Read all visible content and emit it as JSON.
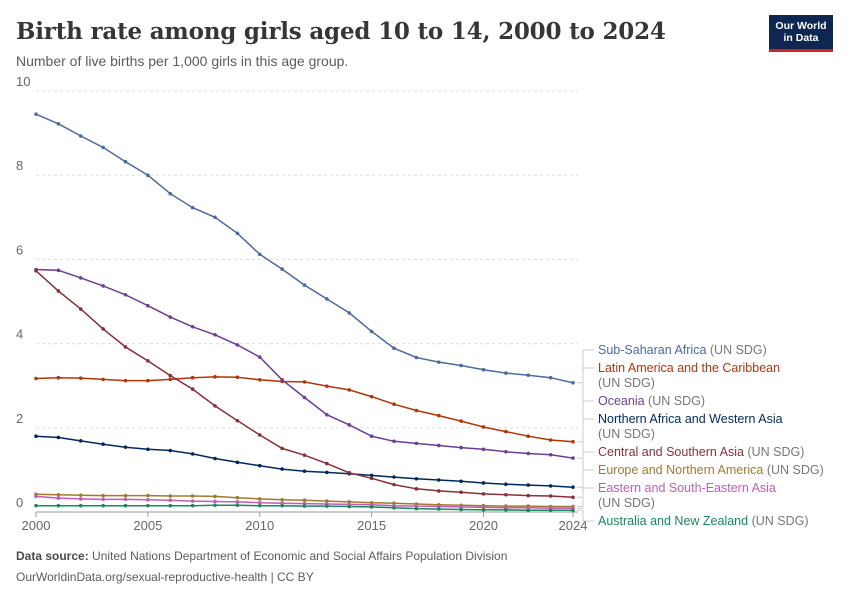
{
  "header": {
    "title": "Birth rate among girls aged 10 to 14, 2000 to 2024",
    "subtitle": "Number of live births per 1,000 girls in this age group.",
    "logo_line1": "Our World",
    "logo_line2": "in Data",
    "brand_color": "#0f2650",
    "brand_accent": "#ce261e"
  },
  "footer": {
    "source_label": "Data source:",
    "source_text": "United Nations Department of Economic and Social Affairs Population Division",
    "url": "OurWorldinData.org/sexual-reproductive-health | CC BY"
  },
  "chart_data": {
    "type": "line",
    "title": "Birth rate among girls aged 10 to 14, 2000 to 2024",
    "subtitle": "Number of live births per 1,000 girls in this age group.",
    "xlabel": "",
    "ylabel": "",
    "xlim": [
      2000,
      2024
    ],
    "ylim": [
      0,
      10
    ],
    "x_ticks": [
      2000,
      2005,
      2010,
      2015,
      2020,
      2024
    ],
    "y_ticks": [
      0,
      2,
      4,
      6,
      8,
      10
    ],
    "grid": "horizontal-dashed",
    "legend": "right",
    "x": [
      2000,
      2001,
      2002,
      2003,
      2004,
      2005,
      2006,
      2007,
      2008,
      2009,
      2010,
      2011,
      2012,
      2013,
      2014,
      2015,
      2016,
      2017,
      2018,
      2019,
      2020,
      2021,
      2022,
      2023,
      2024
    ],
    "series": [
      {
        "name": "Sub-Saharan Africa",
        "suffix": " (UN SDG)",
        "color": "#4c6a9c",
        "values": [
          9.45,
          9.22,
          8.93,
          8.66,
          8.32,
          8.0,
          7.56,
          7.23,
          7.0,
          6.62,
          6.12,
          5.77,
          5.39,
          5.06,
          4.73,
          4.29,
          3.89,
          3.67,
          3.56,
          3.48,
          3.38,
          3.3,
          3.25,
          3.19,
          3.07
        ]
      },
      {
        "name": "Latin America and the Caribbean",
        "suffix": "",
        "legend_line2": "(UN SDG)",
        "color": "#b13507",
        "values": [
          3.17,
          3.19,
          3.18,
          3.15,
          3.12,
          3.12,
          3.15,
          3.19,
          3.21,
          3.2,
          3.14,
          3.1,
          3.09,
          2.99,
          2.9,
          2.74,
          2.56,
          2.41,
          2.29,
          2.16,
          2.02,
          1.91,
          1.8,
          1.71,
          1.67
        ]
      },
      {
        "name": "Oceania",
        "suffix": " (UN SDG)",
        "color": "#6d3e91",
        "values": [
          5.76,
          5.74,
          5.56,
          5.37,
          5.16,
          4.9,
          4.63,
          4.4,
          4.21,
          3.97,
          3.68,
          3.14,
          2.72,
          2.31,
          2.07,
          1.8,
          1.68,
          1.63,
          1.58,
          1.53,
          1.49,
          1.43,
          1.39,
          1.36,
          1.28
        ]
      },
      {
        "name": "Northern Africa and Western Asia",
        "suffix": "",
        "legend_line2": "(UN SDG)",
        "color": "#00295b",
        "values": [
          1.8,
          1.77,
          1.69,
          1.61,
          1.54,
          1.49,
          1.46,
          1.38,
          1.27,
          1.18,
          1.1,
          1.02,
          0.97,
          0.94,
          0.91,
          0.87,
          0.83,
          0.79,
          0.76,
          0.73,
          0.69,
          0.66,
          0.64,
          0.62,
          0.59
        ]
      },
      {
        "name": "Central and Southern Asia",
        "suffix": " (UN SDG)",
        "color": "#883039",
        "values": [
          5.73,
          5.25,
          4.82,
          4.35,
          3.92,
          3.59,
          3.24,
          2.92,
          2.52,
          2.17,
          1.83,
          1.51,
          1.35,
          1.15,
          0.93,
          0.8,
          0.65,
          0.55,
          0.5,
          0.47,
          0.43,
          0.41,
          0.39,
          0.38,
          0.35
        ]
      },
      {
        "name": "Europe and Northern America",
        "suffix": " (UN SDG)",
        "color": "#a2792f",
        "values": [
          0.42,
          0.41,
          0.4,
          0.39,
          0.39,
          0.39,
          0.38,
          0.38,
          0.37,
          0.34,
          0.31,
          0.29,
          0.28,
          0.26,
          0.24,
          0.22,
          0.21,
          0.19,
          0.17,
          0.16,
          0.15,
          0.14,
          0.14,
          0.13,
          0.13
        ]
      },
      {
        "name": "Eastern and South-Eastern Asia",
        "suffix": "",
        "legend_line2": "(UN SDG)",
        "color": "#c05db9",
        "values": [
          0.37,
          0.33,
          0.31,
          0.3,
          0.3,
          0.29,
          0.28,
          0.26,
          0.25,
          0.24,
          0.22,
          0.21,
          0.2,
          0.19,
          0.18,
          0.17,
          0.15,
          0.14,
          0.13,
          0.12,
          0.11,
          0.1,
          0.1,
          0.09,
          0.09
        ]
      },
      {
        "name": "Australia and New Zealand",
        "suffix": " (UN SDG)",
        "color": "#18885f",
        "values": [
          0.15,
          0.15,
          0.15,
          0.15,
          0.15,
          0.15,
          0.15,
          0.15,
          0.16,
          0.16,
          0.15,
          0.15,
          0.14,
          0.14,
          0.13,
          0.12,
          0.1,
          0.08,
          0.07,
          0.06,
          0.05,
          0.05,
          0.04,
          0.04,
          0.04
        ]
      }
    ]
  }
}
